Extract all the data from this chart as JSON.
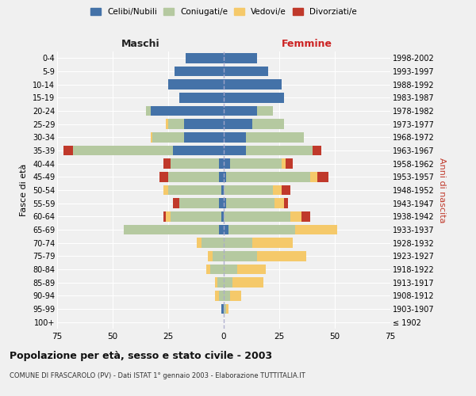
{
  "age_groups": [
    "100+",
    "95-99",
    "90-94",
    "85-89",
    "80-84",
    "75-79",
    "70-74",
    "65-69",
    "60-64",
    "55-59",
    "50-54",
    "45-49",
    "40-44",
    "35-39",
    "30-34",
    "25-29",
    "20-24",
    "15-19",
    "10-14",
    "5-9",
    "0-4"
  ],
  "birth_years": [
    "≤ 1902",
    "1903-1907",
    "1908-1912",
    "1913-1917",
    "1918-1922",
    "1923-1927",
    "1928-1932",
    "1933-1937",
    "1938-1942",
    "1943-1947",
    "1948-1952",
    "1953-1957",
    "1958-1962",
    "1963-1967",
    "1968-1972",
    "1973-1977",
    "1978-1982",
    "1983-1987",
    "1988-1992",
    "1993-1997",
    "1998-2002"
  ],
  "male": {
    "celibi": [
      0,
      1,
      0,
      0,
      0,
      0,
      0,
      2,
      1,
      2,
      1,
      2,
      2,
      23,
      18,
      18,
      33,
      20,
      25,
      22,
      17
    ],
    "coniugati": [
      0,
      0,
      2,
      3,
      6,
      5,
      10,
      43,
      23,
      18,
      24,
      23,
      22,
      45,
      14,
      7,
      2,
      0,
      0,
      0,
      0
    ],
    "vedovi": [
      0,
      0,
      2,
      1,
      2,
      2,
      2,
      0,
      2,
      0,
      2,
      0,
      0,
      0,
      1,
      1,
      0,
      0,
      0,
      0,
      0
    ],
    "divorziati": [
      0,
      0,
      0,
      0,
      0,
      0,
      0,
      0,
      1,
      3,
      0,
      4,
      3,
      4,
      0,
      0,
      0,
      0,
      0,
      0,
      0
    ]
  },
  "female": {
    "nubili": [
      0,
      0,
      0,
      0,
      0,
      0,
      0,
      2,
      0,
      1,
      0,
      1,
      3,
      10,
      10,
      13,
      15,
      27,
      26,
      20,
      15
    ],
    "coniugate": [
      0,
      1,
      3,
      4,
      6,
      15,
      13,
      30,
      30,
      22,
      22,
      38,
      23,
      30,
      26,
      14,
      7,
      0,
      0,
      0,
      0
    ],
    "vedove": [
      0,
      1,
      5,
      14,
      13,
      22,
      18,
      19,
      5,
      4,
      4,
      3,
      2,
      0,
      0,
      0,
      0,
      0,
      0,
      0,
      0
    ],
    "divorziate": [
      0,
      0,
      0,
      0,
      0,
      0,
      0,
      0,
      4,
      2,
      4,
      5,
      3,
      4,
      0,
      0,
      0,
      0,
      0,
      0,
      0
    ]
  },
  "colors": {
    "celibi": "#4472a8",
    "coniugati": "#b5c9a0",
    "vedovi": "#f5c96a",
    "divorziati": "#c0392b"
  },
  "xlim": 75,
  "title": "Popolazione per età, sesso e stato civile - 2003",
  "subtitle": "COMUNE DI FRASCAROLO (PV) - Dati ISTAT 1° gennaio 2003 - Elaborazione TUTTITALIA.IT",
  "ylabel_left": "Fasce di età",
  "ylabel_right": "Anni di nascita",
  "xlabel_left": "Maschi",
  "xlabel_right": "Femmine",
  "legend_labels": [
    "Celibi/Nubili",
    "Coniugati/e",
    "Vedovi/e",
    "Divorziati/e"
  ],
  "bg_color": "#f0f0f0",
  "plot_bg": "#f0f0f0"
}
